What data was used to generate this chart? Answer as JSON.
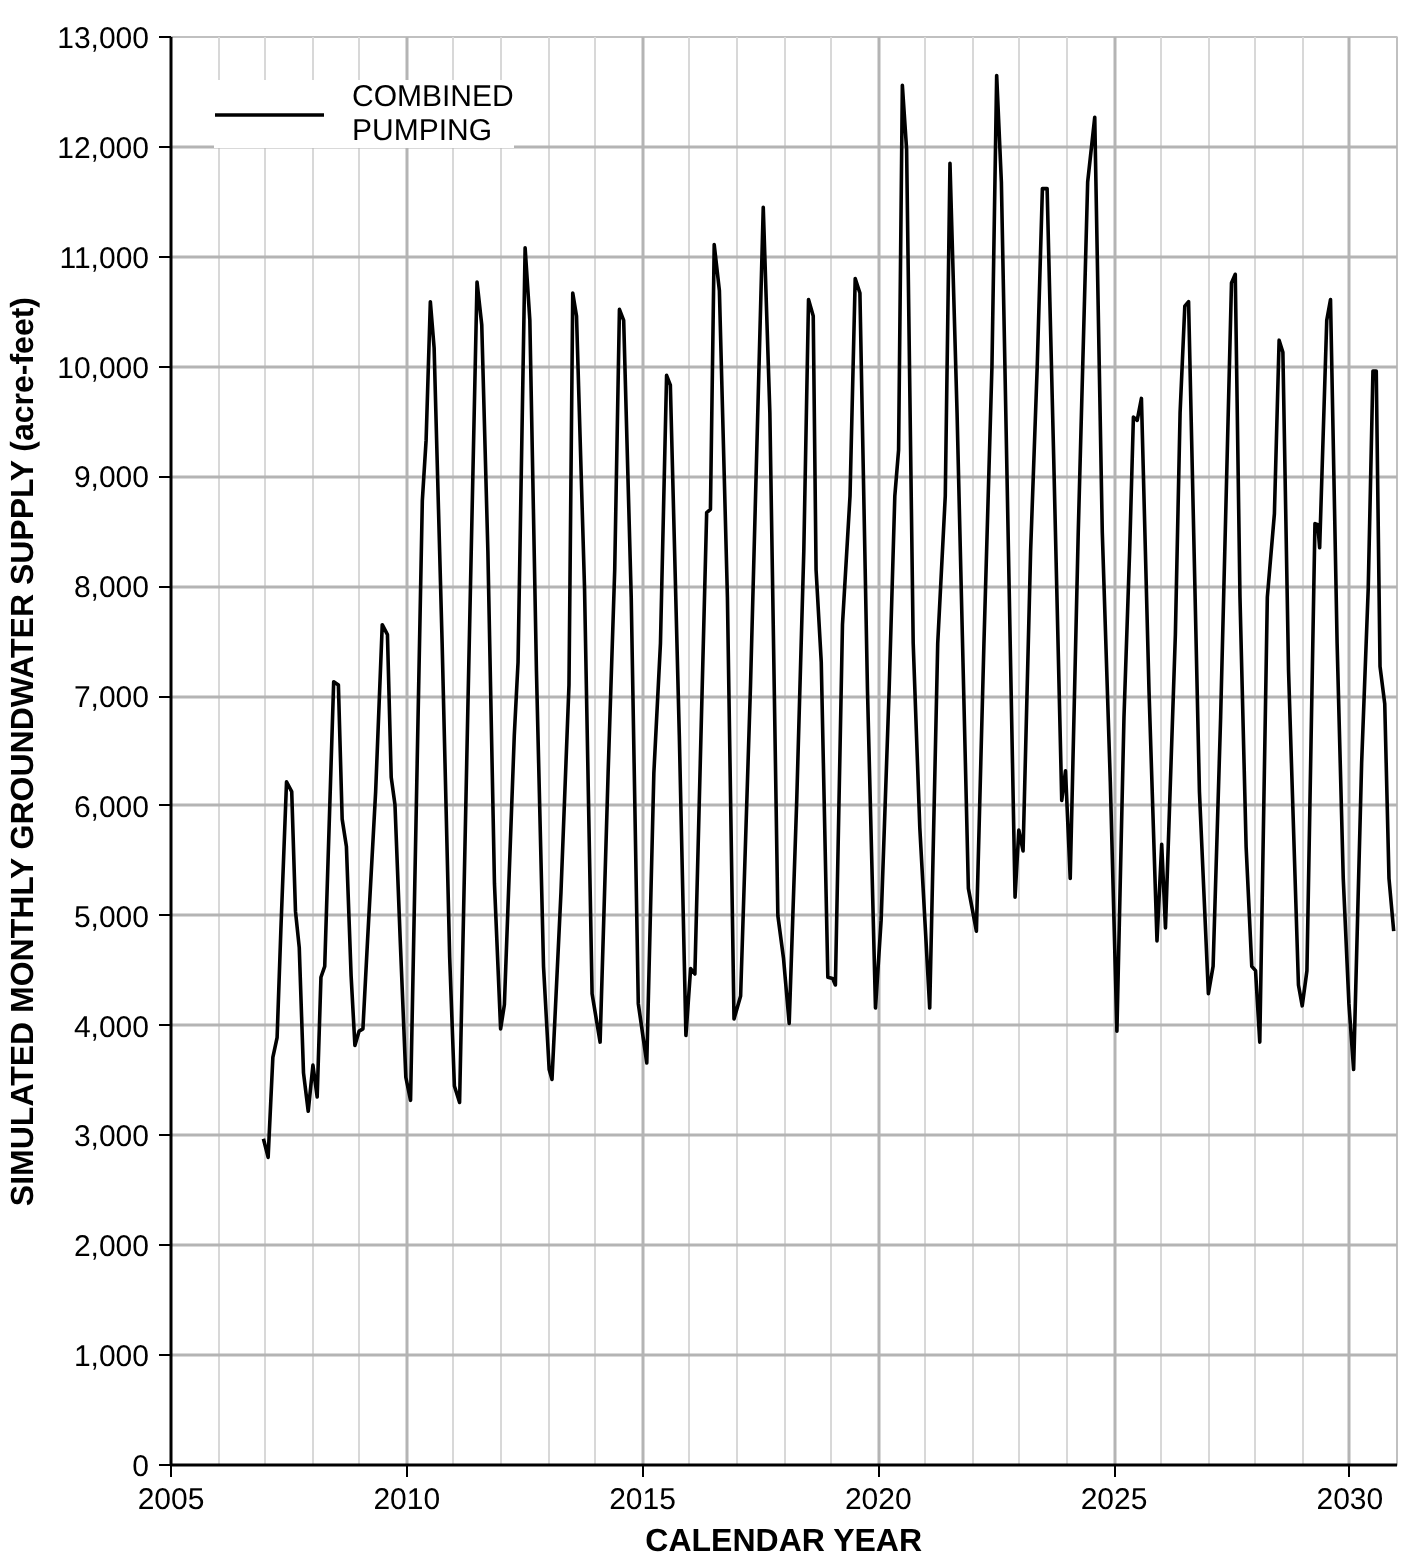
{
  "chart_data": {
    "type": "line",
    "xlabel": "CALENDAR YEAR",
    "ylabel": "SIMULATED MONTHLY GROUNDWATER SUPPLY (acre-feet)",
    "xlim": [
      2005,
      2031
    ],
    "ylim": [
      0,
      13000
    ],
    "xticks": [
      2005,
      {
        "value": 2006,
        "label": null
      },
      {
        "value": 2007,
        "label": null
      },
      {
        "value": 2008,
        "label": null
      },
      {
        "value": 2009,
        "label": null
      },
      2010,
      {
        "value": 2011,
        "label": null
      },
      {
        "value": 2012,
        "label": null
      },
      {
        "value": 2013,
        "label": null
      },
      {
        "value": 2014,
        "label": null
      },
      2015,
      {
        "value": 2016,
        "label": null
      },
      {
        "value": 2017,
        "label": null
      },
      {
        "value": 2018,
        "label": null
      },
      {
        "value": 2019,
        "label": null
      },
      2020,
      {
        "value": 2021,
        "label": null
      },
      {
        "value": 2022,
        "label": null
      },
      {
        "value": 2023,
        "label": null
      },
      {
        "value": 2024,
        "label": null
      },
      2025,
      {
        "value": 2026,
        "label": null
      },
      {
        "value": 2027,
        "label": null
      },
      {
        "value": 2028,
        "label": null
      },
      {
        "value": 2029,
        "label": null
      },
      2030,
      {
        "value": 2031,
        "label": null
      }
    ],
    "yticks": [
      {
        "value": 0,
        "label": "0"
      },
      {
        "value": 1000,
        "label": "1,000"
      },
      {
        "value": 2000,
        "label": "2,000"
      },
      {
        "value": 3000,
        "label": "3,000"
      },
      {
        "value": 4000,
        "label": "4,000"
      },
      {
        "value": 5000,
        "label": "5,000"
      },
      {
        "value": 6000,
        "label": "6,000"
      },
      {
        "value": 7000,
        "label": "7,000"
      },
      {
        "value": 8000,
        "label": "8,000"
      },
      {
        "value": 9000,
        "label": "9,000"
      },
      {
        "value": 10000,
        "label": "10,000"
      },
      {
        "value": 11000,
        "label": "11,000"
      },
      {
        "value": 12000,
        "label": "12,000"
      },
      {
        "value": 13000,
        "label": "13,000"
      }
    ],
    "grid": true,
    "legend": "top left",
    "marker": "none",
    "line_style": "solid",
    "series": [
      {
        "name": "COMBINED\nPUMPING",
        "color": "#000000",
        "x": [
          2006.96,
          2007.06,
          2007.16,
          2007.25,
          2007.33,
          2007.45,
          2007.56,
          2007.64,
          2007.72,
          2007.81,
          2007.91,
          2008.01,
          2008.1,
          2008.18,
          2008.26,
          2008.45,
          2008.55,
          2008.63,
          2008.72,
          2008.82,
          2008.9,
          2008.99,
          2009.07,
          2009.17,
          2009.34,
          2009.48,
          2009.59,
          2009.67,
          2009.75,
          2009.86,
          2009.98,
          2010.08,
          2010.33,
          2010.41,
          2010.5,
          2010.58,
          2010.75,
          2010.91,
          2011.01,
          2011.12,
          2011.3,
          2011.49,
          2011.59,
          2011.72,
          2011.86,
          2011.99,
          2012.07,
          2012.28,
          2012.36,
          2012.51,
          2012.61,
          2012.75,
          2012.9,
          2013.02,
          2013.08,
          2013.27,
          2013.44,
          2013.52,
          2013.6,
          2013.77,
          2013.93,
          2014.1,
          2014.27,
          2014.41,
          2014.51,
          2014.6,
          2014.76,
          2014.91,
          2015.09,
          2015.24,
          2015.38,
          2015.51,
          2015.59,
          2015.78,
          2015.92,
          2016.02,
          2016.11,
          2016.36,
          2016.44,
          2016.52,
          2016.63,
          2016.8,
          2016.94,
          2017.08,
          2017.29,
          2017.56,
          2017.7,
          2017.87,
          2017.99,
          2018.11,
          2018.27,
          2018.42,
          2018.52,
          2018.62,
          2018.68,
          2018.79,
          2018.93,
          2019.03,
          2019.09,
          2019.24,
          2019.4,
          2019.51,
          2019.61,
          2019.77,
          2019.94,
          2020.06,
          2020.23,
          2020.35,
          2020.43,
          2020.51,
          2020.6,
          2020.74,
          2020.88,
          2021.09,
          2021.26,
          2021.42,
          2021.52,
          2021.67,
          2021.91,
          2022.08,
          2022.24,
          2022.41,
          2022.51,
          2022.61,
          2022.76,
          2022.9,
          2022.98,
          2023.07,
          2023.23,
          2023.37,
          2023.48,
          2023.58,
          2023.72,
          2023.89,
          2023.97,
          2024.07,
          2024.24,
          2024.44,
          2024.59,
          2024.75,
          2024.92,
          2025.06,
          2025.21,
          2025.33,
          2025.41,
          2025.49,
          2025.58,
          2025.74,
          2025.91,
          2026.01,
          2026.09,
          2026.3,
          2026.4,
          2026.5,
          2026.58,
          2026.81,
          2027.0,
          2027.1,
          2027.26,
          2027.49,
          2027.57,
          2027.67,
          2027.8,
          2027.92,
          2028.0,
          2028.09,
          2028.25,
          2028.4,
          2028.5,
          2028.58,
          2028.7,
          2028.91,
          2028.99,
          2029.09,
          2029.26,
          2029.32,
          2029.36,
          2029.51,
          2029.59,
          2029.73,
          2029.86,
          2029.98,
          2030.08,
          2030.25,
          2030.39,
          2030.49,
          2030.56,
          2030.64,
          2030.74,
          2030.83,
          2030.93
        ],
        "values": [
          2970,
          2800,
          3710,
          3890,
          4870,
          6220,
          6130,
          5040,
          4710,
          3570,
          3220,
          3640,
          3350,
          4440,
          4540,
          7130,
          7100,
          5880,
          5630,
          4450,
          3820,
          3950,
          3970,
          4790,
          6130,
          7650,
          7560,
          6260,
          6010,
          4790,
          3530,
          3320,
          8780,
          9330,
          10590,
          10170,
          7480,
          4620,
          3450,
          3300,
          6980,
          10770,
          10380,
          8320,
          5290,
          3970,
          4190,
          6640,
          7310,
          11080,
          10420,
          7230,
          4540,
          3600,
          3510,
          5210,
          7100,
          10670,
          10460,
          7980,
          4290,
          3850,
          6300,
          8150,
          10520,
          10420,
          7900,
          4200,
          3660,
          6300,
          7480,
          9920,
          9830,
          6640,
          3910,
          4520,
          4470,
          8670,
          8700,
          11110,
          10690,
          7900,
          4060,
          4270,
          7100,
          11450,
          9580,
          5000,
          4610,
          4020,
          6050,
          8320,
          10610,
          10460,
          8150,
          7310,
          4440,
          4430,
          4370,
          7650,
          8820,
          10800,
          10670,
          7060,
          4160,
          4960,
          7060,
          8820,
          9240,
          12560,
          11980,
          7480,
          5800,
          4160,
          7480,
          8820,
          11850,
          9580,
          5250,
          4860,
          7480,
          10000,
          12650,
          11680,
          8320,
          5170,
          5780,
          5590,
          8320,
          10000,
          11620,
          11620,
          9160,
          6050,
          6320,
          5340,
          8490,
          11680,
          12270,
          8490,
          6220,
          3950,
          6810,
          8320,
          9540,
          9510,
          9710,
          7060,
          4770,
          5650,
          4890,
          7560,
          9580,
          10550,
          10590,
          6130,
          4290,
          4540,
          6810,
          10760,
          10840,
          7900,
          5630,
          4540,
          4500,
          3850,
          7900,
          8660,
          10240,
          10130,
          7230,
          4370,
          4180,
          4500,
          8570,
          8560,
          8350,
          10420,
          10610,
          7480,
          5340,
          4200,
          3600,
          6390,
          7980,
          9960,
          9960,
          7270,
          6930,
          5340,
          4860
        ]
      }
    ]
  }
}
